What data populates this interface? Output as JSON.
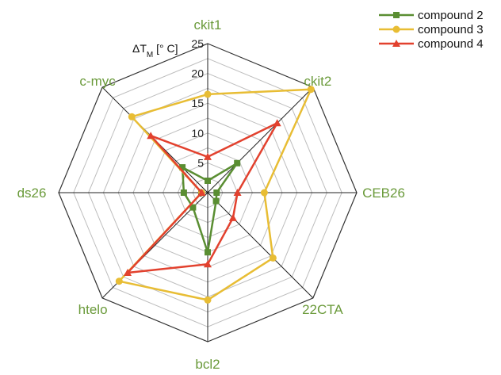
{
  "chart_data": {
    "type": "radar",
    "ylabel": {
      "base": "ΔT",
      "sub": "M",
      "unit": " [° C]"
    },
    "categories": [
      "ckit1",
      "ckit2",
      "CEB26",
      "22CTA",
      "bcl2",
      "htelo",
      "ds26",
      "c-myc"
    ],
    "rlim": [
      0,
      25
    ],
    "ticks": [
      "0",
      "5",
      "10",
      "15",
      "20",
      "25"
    ],
    "grid": true,
    "legend_position": "top-right",
    "series": [
      {
        "name": "compound 2",
        "color": "#5a8e32",
        "marker": "square",
        "values": [
          2,
          7,
          1.5,
          2,
          10,
          3.5,
          4,
          6
        ]
      },
      {
        "name": "compound 3",
        "color": "#e8bd34",
        "marker": "circle",
        "values": [
          16.5,
          24.5,
          9.5,
          15.5,
          18,
          21,
          1,
          18
        ]
      },
      {
        "name": "compound 4",
        "color": "#e2412e",
        "marker": "triangle",
        "values": [
          6,
          16.5,
          5,
          6,
          12,
          19,
          1,
          13.5
        ]
      }
    ]
  }
}
